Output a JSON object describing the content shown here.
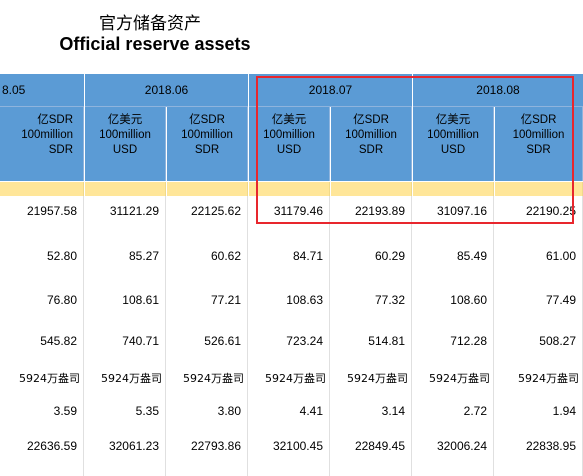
{
  "title_cn": "官方储备资产",
  "title_en": "Official reserve assets",
  "months": [
    "8.05",
    "2018.06",
    "2018.07",
    "2018.08"
  ],
  "units": {
    "sdr": [
      "亿SDR",
      "100million",
      "SDR"
    ],
    "usd": [
      "亿美元",
      "100million",
      "USD"
    ]
  },
  "columns": [
    {
      "unit": "sdr",
      "values": [
        "21957.58",
        "52.80",
        "76.80",
        "545.82",
        "5924万盎司",
        "3.59",
        "22636.59"
      ]
    },
    {
      "unit": "usd",
      "values": [
        "31121.29",
        "85.27",
        "108.61",
        "740.71",
        "5924万盎司",
        "5.35",
        "32061.23"
      ]
    },
    {
      "unit": "sdr",
      "values": [
        "22125.62",
        "60.62",
        "77.21",
        "526.61",
        "5924万盎司",
        "3.80",
        "22793.86"
      ]
    },
    {
      "unit": "usd",
      "values": [
        "31179.46",
        "84.71",
        "108.63",
        "723.24",
        "5924万盎司",
        "4.41",
        "32100.45"
      ]
    },
    {
      "unit": "sdr",
      "values": [
        "22193.89",
        "60.29",
        "77.32",
        "514.81",
        "5924万盎司",
        "3.14",
        "22849.45"
      ]
    },
    {
      "unit": "usd",
      "values": [
        "31097.16",
        "85.49",
        "108.60",
        "712.28",
        "5924万盎司",
        "2.72",
        "32006.24"
      ]
    },
    {
      "unit": "sdr",
      "values": [
        "22190.25",
        "61.00",
        "77.49",
        "508.27",
        "5924万盎司",
        "1.94",
        "22838.95"
      ]
    }
  ],
  "colors": {
    "header_blue": "#5B9BD5",
    "yellow_band": "#FFE699",
    "highlight_red": "#E8262D"
  }
}
